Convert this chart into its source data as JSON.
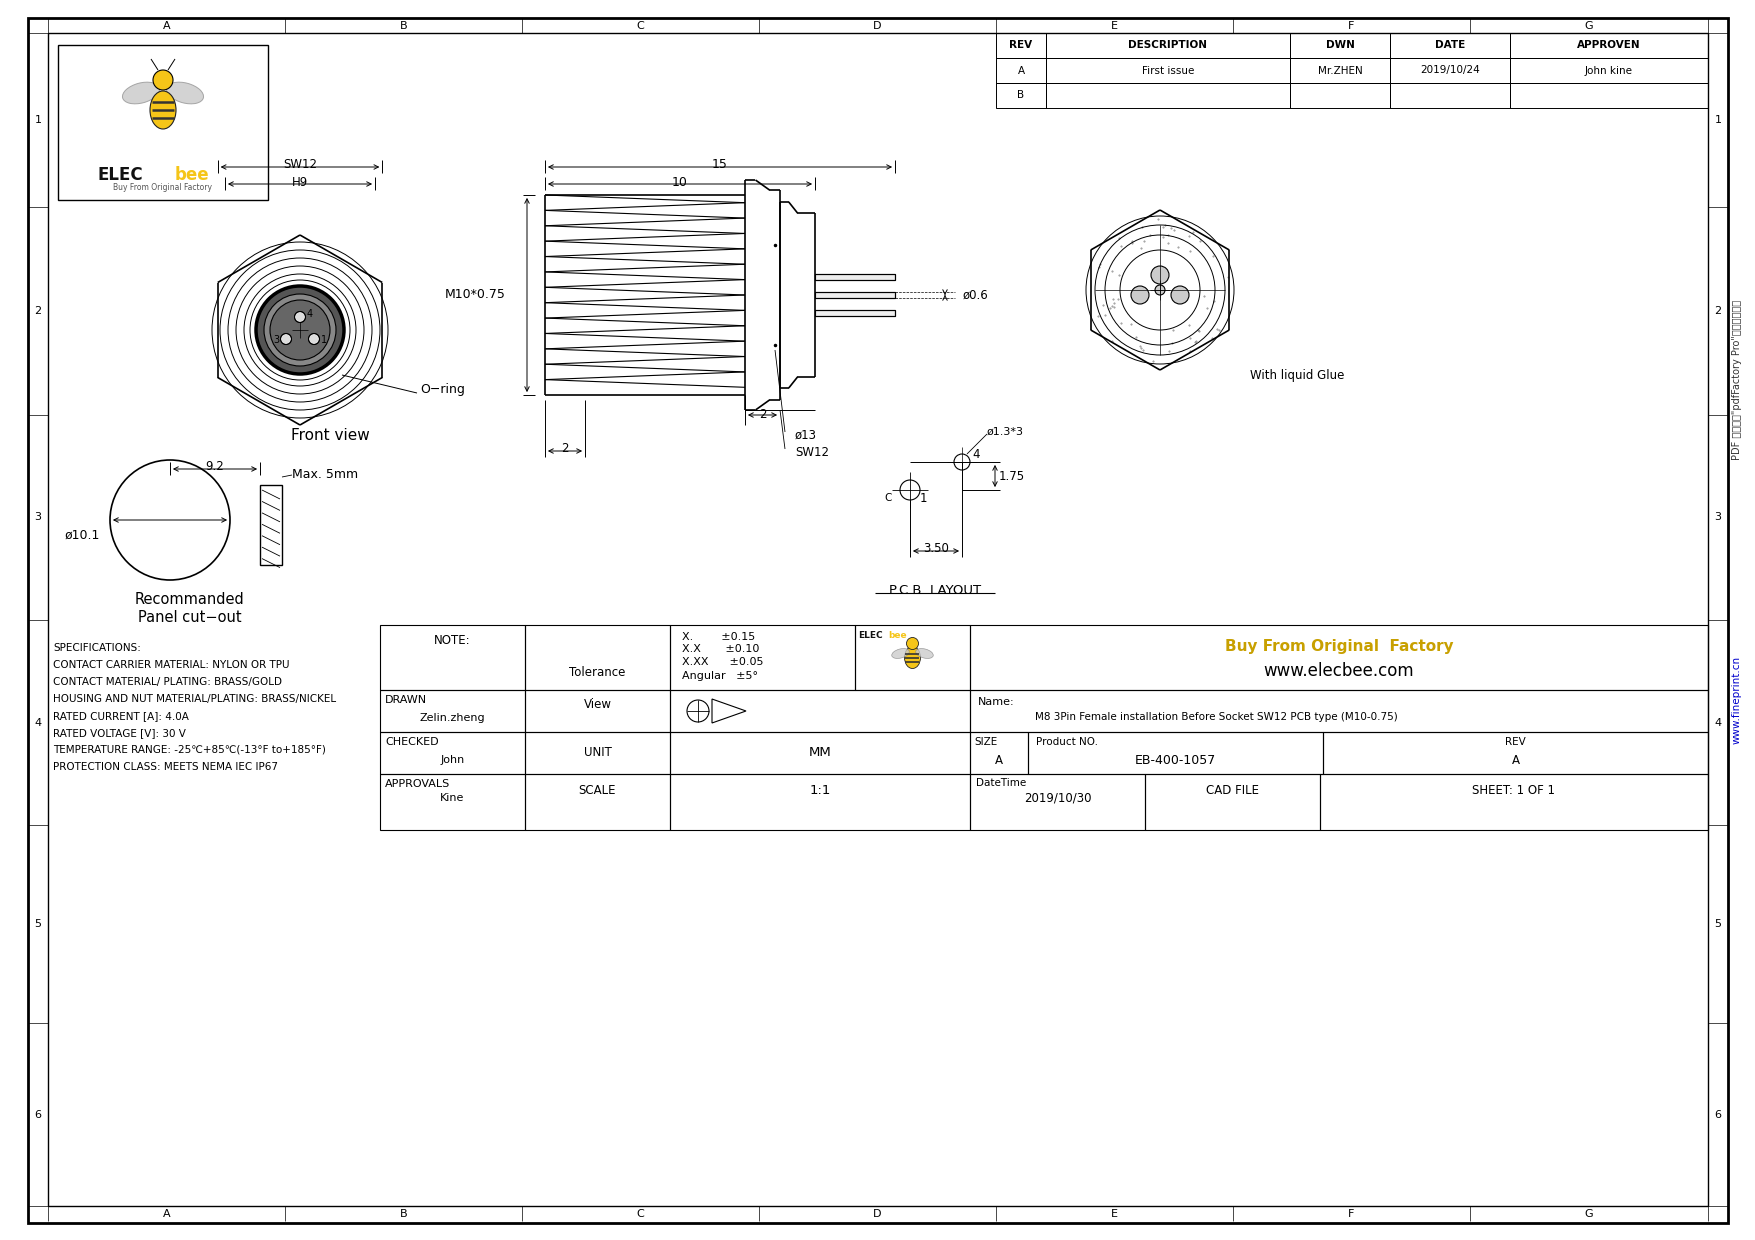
{
  "bg_color": "#ffffff",
  "line_color": "#000000",
  "grid_cols": [
    "A",
    "B",
    "C",
    "D",
    "E",
    "F",
    "G"
  ],
  "grid_rows": [
    "1",
    "2",
    "3",
    "4",
    "5",
    "6"
  ],
  "rev_table": {
    "headers": [
      "REV",
      "DESCRIPTION",
      "DWN",
      "DATE",
      "APPROVEN"
    ],
    "rows": [
      [
        "A",
        "First issue",
        "Mr.ZHEN",
        "2019/10/24",
        "John kine"
      ],
      [
        "B",
        "",
        "",
        "",
        ""
      ]
    ]
  },
  "title_block": {
    "name": "M8 3Pin Female installation Before Socket SW12 PCB type (M10-0.75)",
    "product_no": "EB-400-1057",
    "size": "A",
    "rev": "A",
    "drawn": "Zelin.zheng",
    "checked": "John",
    "approvals": "Kine",
    "unit": "MM",
    "scale": "1:1",
    "date": "2019/10/30",
    "sheet": "1 OF 1"
  },
  "specs": [
    "SPECIFICATIONS:",
    "CONTACT CARRIER MATERIAL: NYLON OR TPU",
    "CONTACT MATERIAL/ PLATING: BRASS/GOLD",
    "HOUSING AND NUT MATERIAL/PLATING: BRASS/NICKEL",
    "RATED CURRENT [A]: 4.0A",
    "RATED VOLTAGE [V]: 30 V",
    "TEMPERATURE RANGE: -25℃+85℃(-13°F to+185°F)",
    "PROTECTION CLASS: MEETS NEMA IEC IP67"
  ],
  "website_blue": "www.fineprint.cn",
  "elecbee_gold": "Buy From Original  Factory",
  "elecbee_web": "www.elecbee.com"
}
